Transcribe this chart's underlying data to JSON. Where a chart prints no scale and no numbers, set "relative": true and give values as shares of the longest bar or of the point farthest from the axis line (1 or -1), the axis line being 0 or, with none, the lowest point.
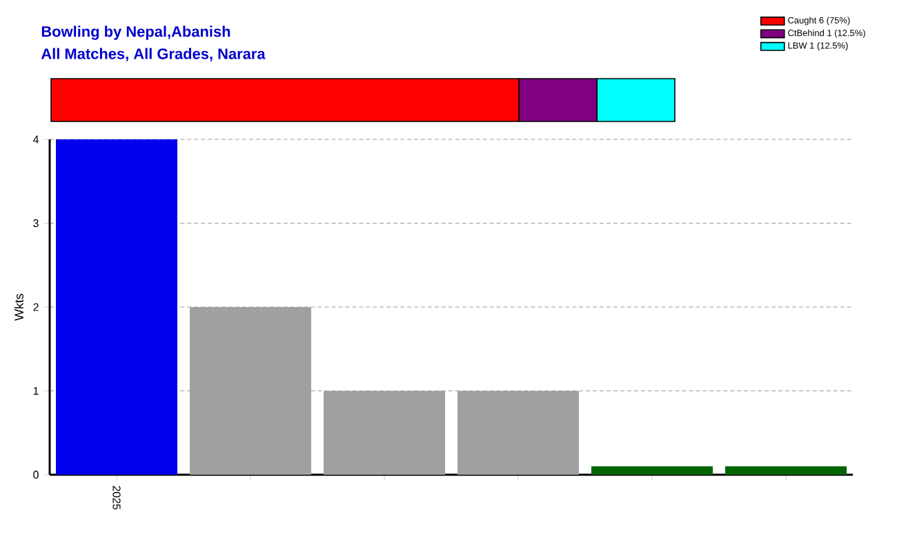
{
  "chart_data": [
    {
      "type": "bar",
      "title": "Bowling by Nepal,Abanish",
      "subtitle": "All Matches, All Grades, Narara",
      "orientation": "horizontal",
      "stacked": true,
      "categories": [
        null
      ],
      "relative": true,
      "tick_labels": false,
      "legend": "top right",
      "series": [
        {
          "name": "Caught 6 (75%)",
          "color": "#ff0000",
          "values": [
            0.75
          ]
        },
        {
          "name": "CtBehind 1 (12.5%)",
          "color": "#800080",
          "values": [
            0.125
          ]
        },
        {
          "name": "LBW 1 (12.5%)",
          "color": "#00ffff",
          "values": [
            0.125
          ]
        }
      ]
    },
    {
      "type": "bar",
      "categories": [
        "2025",
        null,
        null,
        null,
        null,
        null
      ],
      "values": [
        4,
        2,
        1,
        1,
        0.1,
        0.1
      ],
      "colors": [
        "#0000ee",
        "#a0a0a0",
        "#a0a0a0",
        "#a0a0a0",
        "#006400",
        "#006400"
      ],
      "ylim": [
        0,
        4
      ],
      "yticks": [
        0,
        1,
        2,
        3,
        4
      ],
      "ylabel": "Wkts",
      "grid": "y"
    }
  ]
}
